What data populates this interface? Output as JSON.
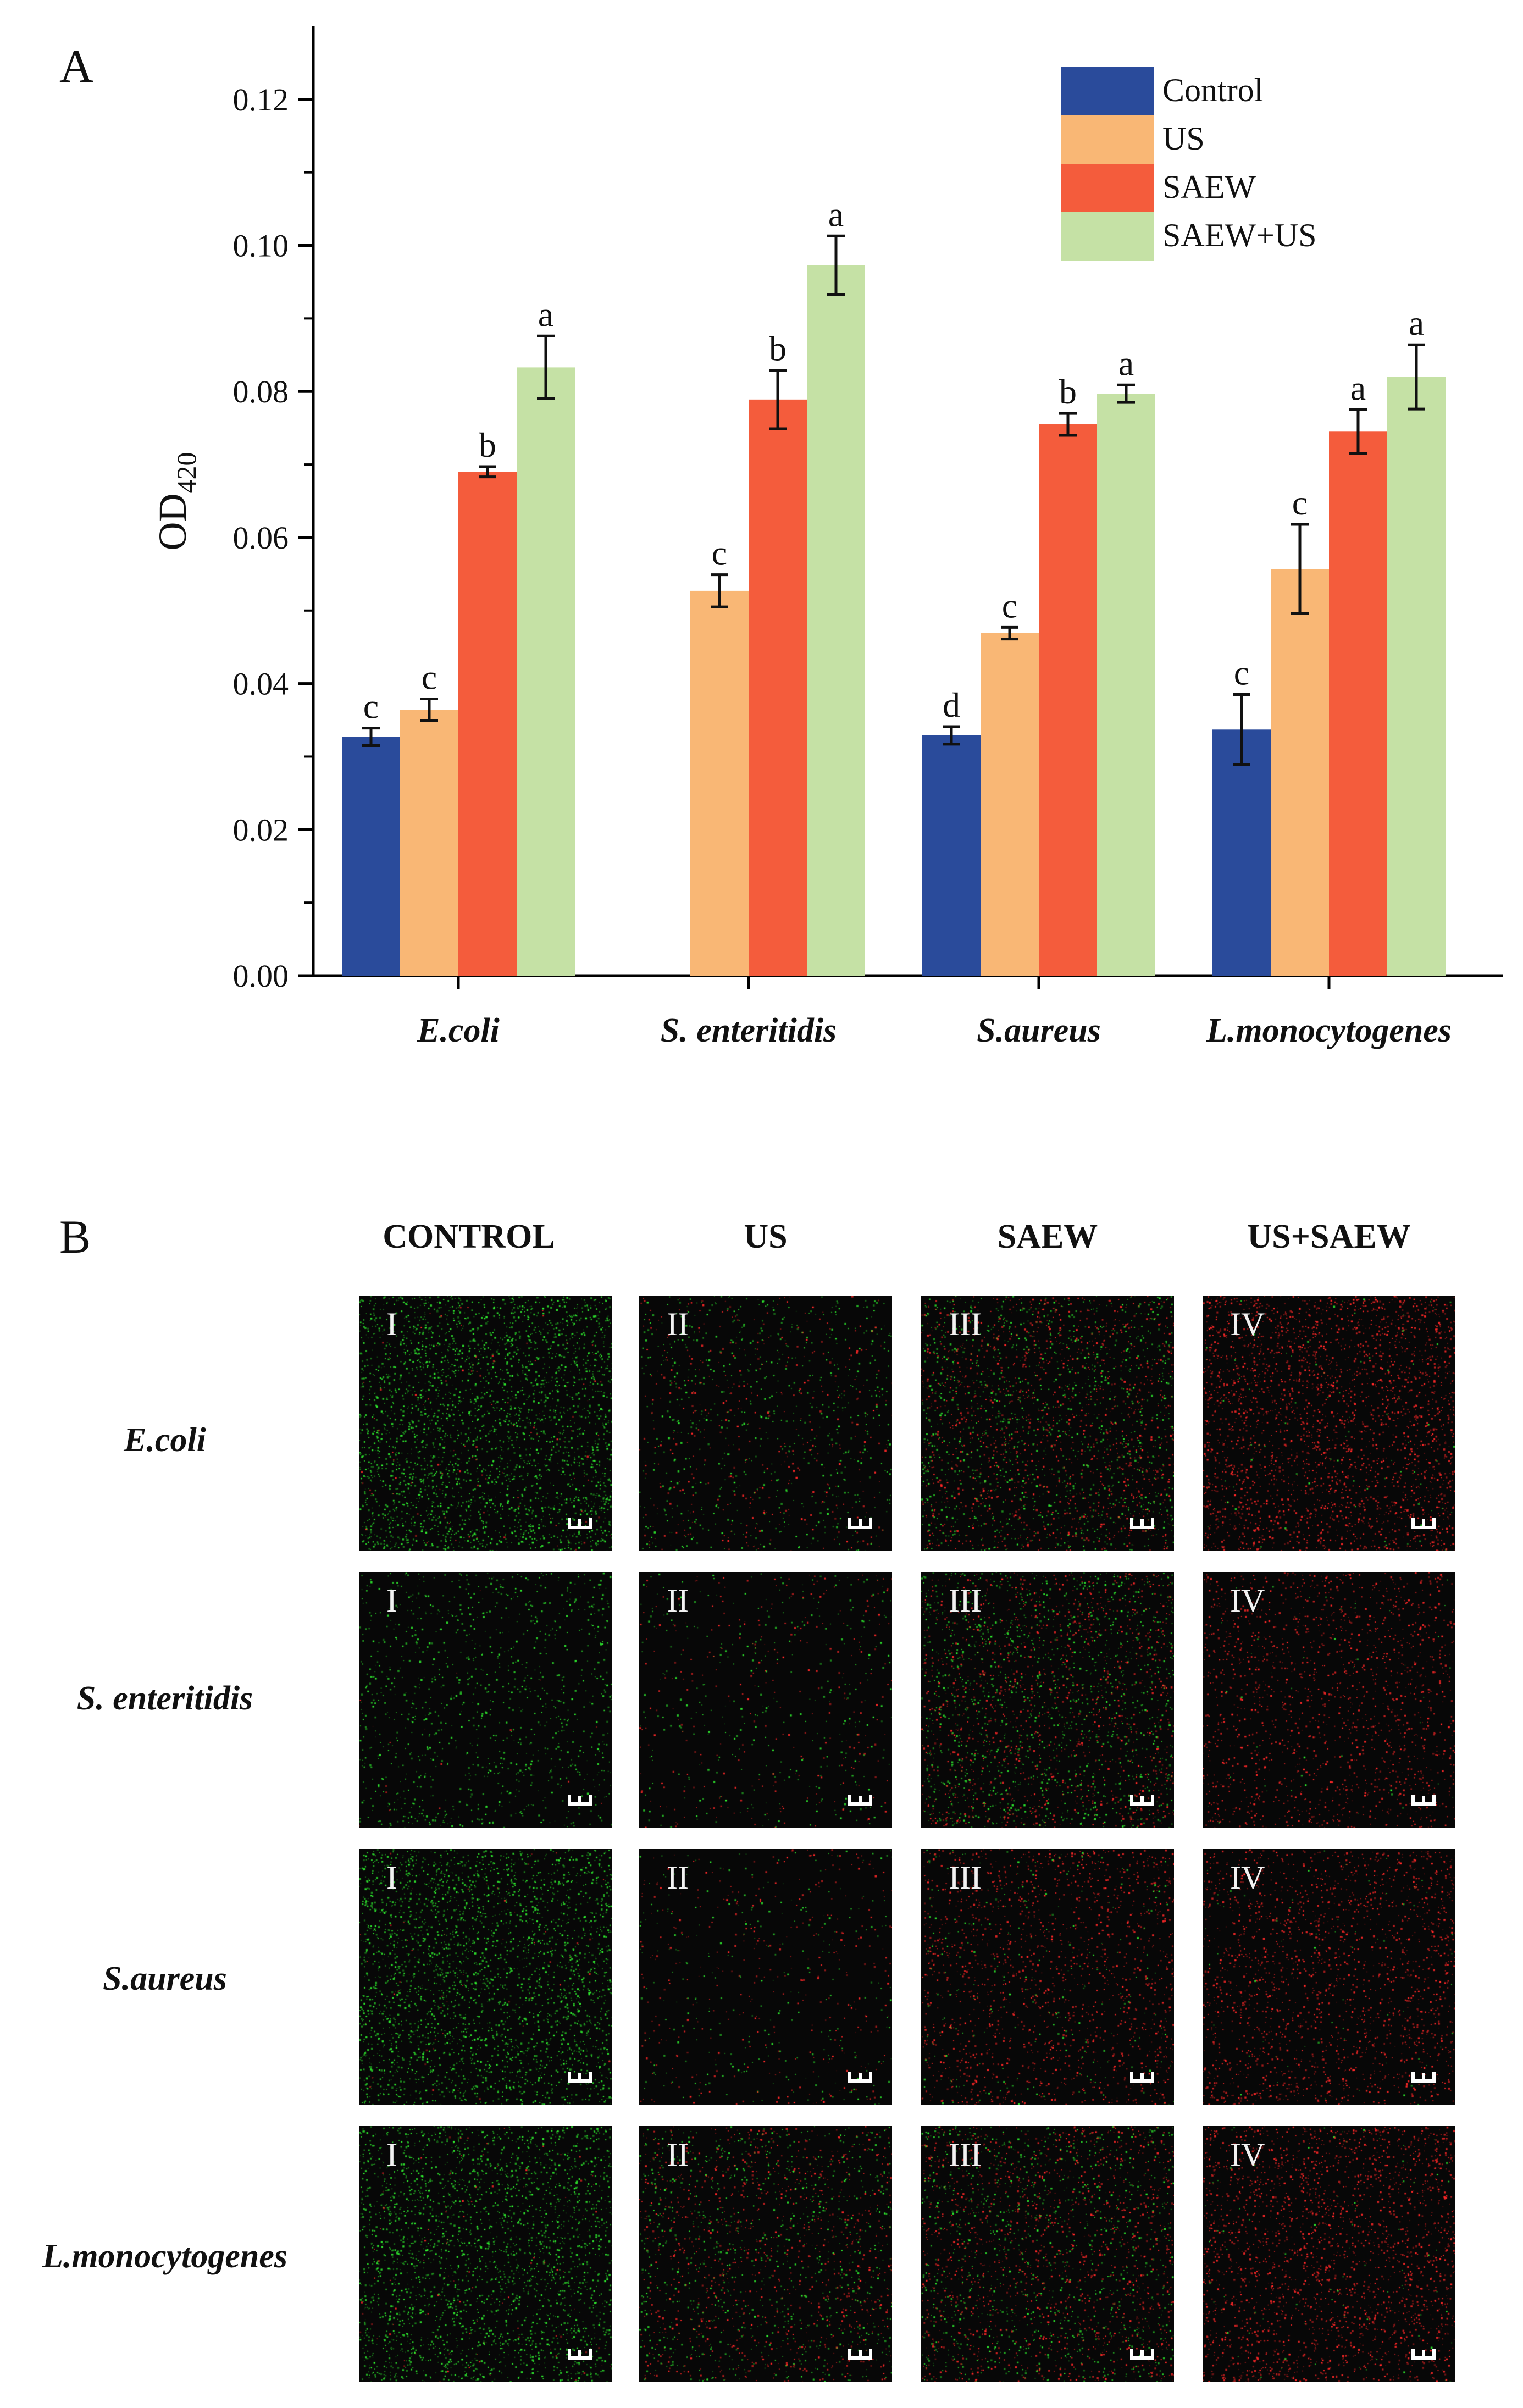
{
  "panel_a": {
    "label": "A"
  },
  "panel_b": {
    "label": "B"
  },
  "chart_data": {
    "type": "bar",
    "title": "",
    "xlabel": "",
    "ylabel": "OD",
    "ylabel_subscript": "420",
    "ylim": [
      0,
      0.13
    ],
    "yticks": [
      "0.00",
      "0.02",
      "0.04",
      "0.06",
      "0.08",
      "0.10",
      "0.12"
    ],
    "categories": [
      "E.coli",
      "S. enteritidis",
      "S.aureus",
      "L.monocytogenes"
    ],
    "legend_position": "top-right",
    "series": [
      {
        "name": "Control",
        "color": "#2a4b9b",
        "values": [
          0.0327,
          null,
          0.0329,
          0.0337
        ],
        "errors": [
          0.0012,
          null,
          0.0012,
          0.0048
        ],
        "letters": [
          "c",
          null,
          "d",
          "c"
        ]
      },
      {
        "name": "US",
        "color": "#f9b775",
        "values": [
          0.0364,
          0.0527,
          0.0469,
          0.0557
        ],
        "errors": [
          0.0015,
          0.0022,
          0.0008,
          0.0061
        ],
        "letters": [
          "c",
          "c",
          "c",
          "c"
        ]
      },
      {
        "name": "SAEW",
        "color": "#f45c3c",
        "values": [
          0.069,
          0.0789,
          0.0755,
          0.0745
        ],
        "errors": [
          0.0007,
          0.004,
          0.0015,
          0.003
        ],
        "letters": [
          "b",
          "b",
          "b",
          "a"
        ]
      },
      {
        "name": "SAEW+US",
        "color": "#c5e1a5",
        "values": [
          0.0833,
          0.0973,
          0.0797,
          0.082
        ],
        "errors": [
          0.0043,
          0.004,
          0.0012,
          0.0044
        ],
        "letters": [
          "a",
          "a",
          "a",
          "a"
        ]
      }
    ]
  },
  "micrographs": {
    "columns": [
      "CONTROL",
      "US",
      "SAEW",
      "US+SAEW"
    ],
    "tile_numerals": [
      "I",
      "II",
      "III",
      "IV"
    ],
    "rows": [
      {
        "label": "E.coli",
        "red_ratio": [
          0.03,
          0.35,
          0.5,
          0.97
        ],
        "density": [
          0.95,
          0.35,
          0.8,
          0.85
        ]
      },
      {
        "label": "S. enteritidis",
        "red_ratio": [
          0.02,
          0.4,
          0.45,
          0.97
        ],
        "density": [
          0.35,
          0.2,
          0.8,
          0.5
        ]
      },
      {
        "label": "S.aureus",
        "red_ratio": [
          0.02,
          0.55,
          0.85,
          0.97
        ],
        "density": [
          0.9,
          0.2,
          0.55,
          0.6
        ]
      },
      {
        "label": "L.monocytogenes",
        "red_ratio": [
          0.03,
          0.5,
          0.55,
          0.97
        ],
        "density": [
          0.85,
          0.6,
          0.75,
          0.75
        ]
      }
    ],
    "colors": {
      "green": "#2ee82e",
      "red": "#ff2a2a"
    }
  }
}
